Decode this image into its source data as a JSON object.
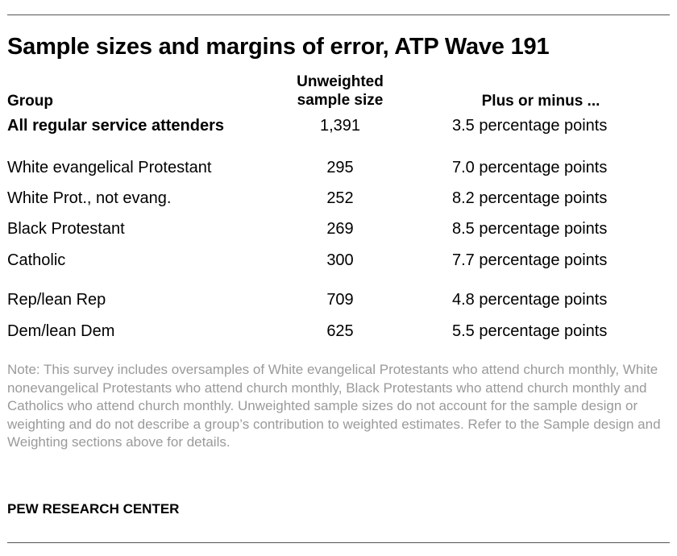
{
  "title": "Sample sizes and margins of error, ATP Wave 191",
  "headers": {
    "group": "Group",
    "sample_line1": "Unweighted",
    "sample_line2": "sample size",
    "moe": "Plus or minus ..."
  },
  "rows": [
    {
      "group": "All regular service attenders",
      "n": "1,391",
      "moe": "3.5 percentage points"
    },
    {
      "group": "White evangelical Protestant",
      "n": "295",
      "moe": "7.0 percentage points"
    },
    {
      "group": "White Prot., not evang.",
      "n": "252",
      "moe": "8.2 percentage points"
    },
    {
      "group": "Black Protestant",
      "n": "269",
      "moe": "8.5 percentage points"
    },
    {
      "group": "Catholic",
      "n": "300",
      "moe": "7.7 percentage points"
    },
    {
      "group": "Rep/lean Rep",
      "n": "709",
      "moe": "4.8 percentage points"
    },
    {
      "group": "Dem/lean Dem",
      "n": "625",
      "moe": "5.5 percentage points"
    }
  ],
  "note": "Note: This survey includes oversamples of White evangelical Protestants who attend church monthly, White nonevangelical Protestants who attend church monthly, Black Protestants who attend church monthly and Catholics who attend church monthly. Unweighted sample sizes do not account for the sample design or weighting and do not describe a group’s contribution to weighted estimates. Refer to the Sample design and Weighting sections above for details.",
  "source": "PEW RESEARCH CENTER"
}
